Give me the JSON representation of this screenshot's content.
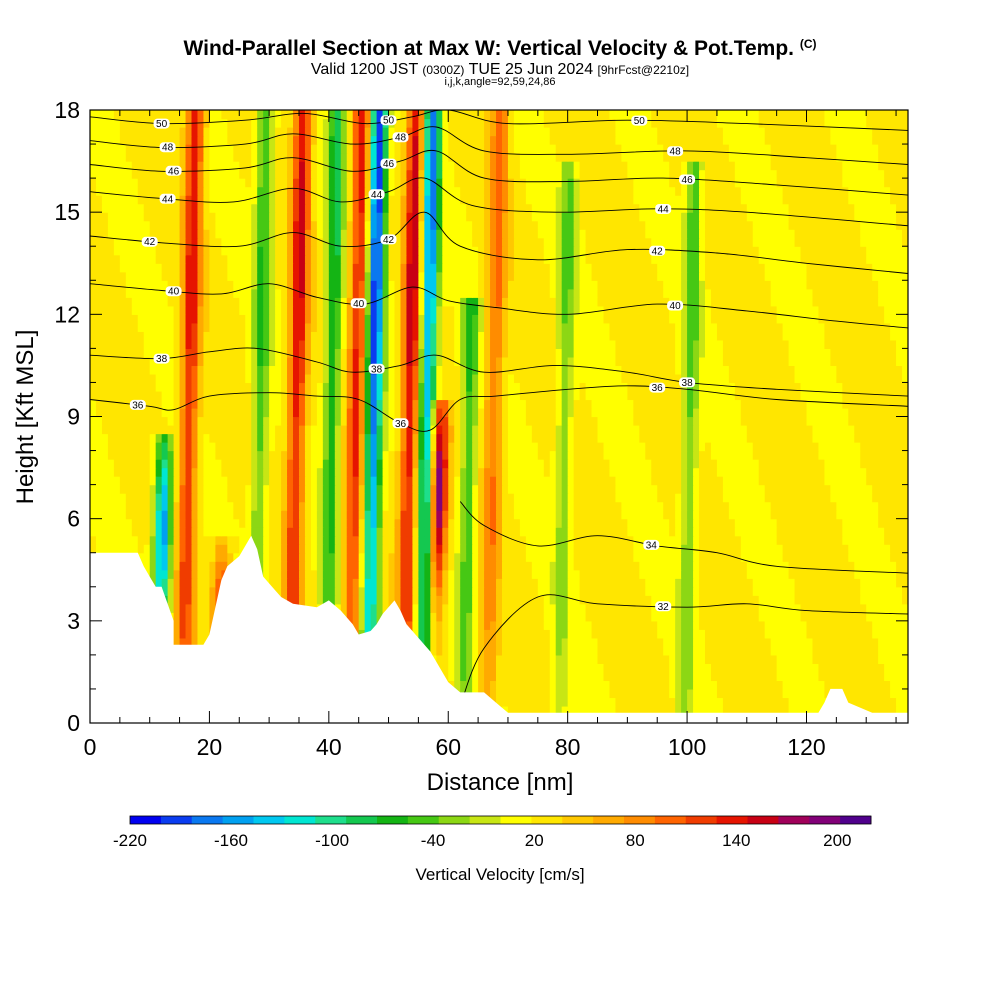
{
  "title": {
    "main": "Wind-Parallel Section at Max W: Vertical Velocity & Pot.Temp.",
    "copyright": "(C)",
    "valid_prefix": "Valid 1200 JST",
    "valid_utc": "(0300Z)",
    "valid_date": "TUE 25 Jun 2024",
    "forecast": "[9hrFcst@2210z]",
    "params": "i,j,k,angle=92,59,24,86"
  },
  "chart_data": {
    "type": "heatmap",
    "xlabel": "Distance [nm]",
    "ylabel": "Height [Kft MSL]",
    "xlim": [
      0,
      137
    ],
    "ylim": [
      0,
      18
    ],
    "x_ticks": [
      "0",
      "20",
      "40",
      "60",
      "80",
      "100",
      "120"
    ],
    "y_ticks": [
      "0",
      "3",
      "6",
      "9",
      "12",
      "15",
      "18"
    ],
    "colorbar": {
      "label": "Vertical Velocity [cm/s]",
      "tick_labels": [
        "-220",
        "-160",
        "-100",
        "-40",
        "20",
        "80",
        "140",
        "200"
      ],
      "range": [
        -220,
        220
      ],
      "colors": [
        "#0000f0",
        "#0a3cf0",
        "#0a78f0",
        "#00a0f0",
        "#00c8f0",
        "#00e6d2",
        "#1ede8c",
        "#14c850",
        "#14b414",
        "#46c814",
        "#8cd714",
        "#c8e614",
        "#ffff00",
        "#ffe600",
        "#ffc800",
        "#ffaa00",
        "#ff8c00",
        "#ff6400",
        "#f03c00",
        "#e61400",
        "#c80014",
        "#a0005a",
        "#820078",
        "#50008c"
      ]
    },
    "updrafts": [
      {
        "x": 16,
        "z_top": 18,
        "w_max": 140
      },
      {
        "x": 22,
        "z_top": 5,
        "w_max": 120
      },
      {
        "x": 34,
        "z_top": 18,
        "w_max": 150
      },
      {
        "x": 44,
        "z_top": 18,
        "w_max": 140
      },
      {
        "x": 53,
        "z_top": 18,
        "w_max": 160
      },
      {
        "x": 58,
        "z_top": 9,
        "w_max": 210
      },
      {
        "x": 67,
        "z_top": 18,
        "w_max": 100
      }
    ],
    "downdrafts": [
      {
        "x": 12,
        "z_top": 8,
        "w_min": -170
      },
      {
        "x": 28,
        "z_top": 18,
        "w_min": -60
      },
      {
        "x": 40,
        "z_top": 18,
        "w_min": -80
      },
      {
        "x": 47,
        "z_top": 18,
        "w_min": -210
      },
      {
        "x": 56,
        "z_top": 18,
        "w_min": -180
      },
      {
        "x": 63,
        "z_top": 12,
        "w_min": -70
      },
      {
        "x": 79,
        "z_top": 16,
        "w_min": -40
      },
      {
        "x": 100,
        "z_top": 16,
        "w_min": -50
      }
    ],
    "theta_contours": [
      {
        "value": 32,
        "label": "32",
        "points": [
          [
            62,
            0.5
          ],
          [
            66,
            2.2
          ],
          [
            75,
            3.7
          ],
          [
            85,
            3.5
          ],
          [
            100,
            3.4
          ],
          [
            110,
            3.5
          ],
          [
            120,
            3.3
          ],
          [
            137,
            3.2
          ]
        ]
      },
      {
        "value": 34,
        "label": "34",
        "points": [
          [
            62,
            6.5
          ],
          [
            66,
            5.8
          ],
          [
            75,
            5.2
          ],
          [
            85,
            5.5
          ],
          [
            95,
            5.2
          ],
          [
            105,
            5.0
          ],
          [
            115,
            4.6
          ],
          [
            137,
            4.4
          ]
        ]
      },
      {
        "value": 36,
        "label": "36",
        "points": [
          [
            0,
            9.5
          ],
          [
            10,
            9.3
          ],
          [
            14,
            9.2
          ],
          [
            20,
            9.6
          ],
          [
            30,
            9.7
          ],
          [
            38,
            9.6
          ],
          [
            45,
            9.5
          ],
          [
            52,
            8.8
          ],
          [
            57,
            8.6
          ],
          [
            62,
            9.5
          ],
          [
            68,
            9.6
          ],
          [
            80,
            9.8
          ],
          [
            90,
            9.9
          ],
          [
            100,
            9.8
          ],
          [
            115,
            9.5
          ],
          [
            137,
            9.3
          ]
        ]
      },
      {
        "value": 38,
        "label": "38",
        "points": [
          [
            0,
            10.8
          ],
          [
            12,
            10.7
          ],
          [
            20,
            10.9
          ],
          [
            28,
            11.0
          ],
          [
            38,
            10.6
          ],
          [
            44,
            10.3
          ],
          [
            52,
            10.5
          ],
          [
            58,
            10.8
          ],
          [
            66,
            10.3
          ],
          [
            78,
            10.5
          ],
          [
            90,
            10.3
          ],
          [
            100,
            10.0
          ],
          [
            115,
            9.8
          ],
          [
            137,
            9.6
          ]
        ]
      },
      {
        "value": 40,
        "label": "40",
        "points": [
          [
            0,
            12.9
          ],
          [
            12,
            12.7
          ],
          [
            22,
            12.6
          ],
          [
            30,
            12.9
          ],
          [
            38,
            12.5
          ],
          [
            46,
            12.3
          ],
          [
            54,
            12.8
          ],
          [
            60,
            12.4
          ],
          [
            68,
            12.2
          ],
          [
            80,
            12.0
          ],
          [
            95,
            12.3
          ],
          [
            110,
            12.1
          ],
          [
            125,
            11.8
          ],
          [
            137,
            11.6
          ]
        ]
      },
      {
        "value": 42,
        "label": "42",
        "points": [
          [
            0,
            14.3
          ],
          [
            12,
            14.1
          ],
          [
            25,
            14.0
          ],
          [
            34,
            14.4
          ],
          [
            42,
            14.0
          ],
          [
            50,
            14.2
          ],
          [
            56,
            15.0
          ],
          [
            62,
            14.0
          ],
          [
            75,
            13.6
          ],
          [
            90,
            13.9
          ],
          [
            105,
            13.8
          ],
          [
            120,
            13.5
          ],
          [
            137,
            13.2
          ]
        ]
      },
      {
        "value": 44,
        "label": "44",
        "points": [
          [
            0,
            15.6
          ],
          [
            12,
            15.4
          ],
          [
            24,
            15.3
          ],
          [
            34,
            15.7
          ],
          [
            42,
            15.3
          ],
          [
            50,
            15.6
          ],
          [
            56,
            16.0
          ],
          [
            64,
            15.2
          ],
          [
            78,
            15.0
          ],
          [
            95,
            15.1
          ],
          [
            110,
            15.0
          ],
          [
            137,
            14.6
          ]
        ]
      },
      {
        "value": 46,
        "label": "46",
        "points": [
          [
            0,
            16.4
          ],
          [
            12,
            16.2
          ],
          [
            26,
            16.3
          ],
          [
            34,
            16.6
          ],
          [
            44,
            16.2
          ],
          [
            52,
            16.5
          ],
          [
            58,
            16.8
          ],
          [
            66,
            16.0
          ],
          [
            80,
            15.9
          ],
          [
            96,
            16.0
          ],
          [
            115,
            15.8
          ],
          [
            137,
            15.5
          ]
        ]
      },
      {
        "value": 48,
        "label": "48",
        "points": [
          [
            0,
            17.1
          ],
          [
            12,
            16.9
          ],
          [
            26,
            17.0
          ],
          [
            34,
            17.3
          ],
          [
            44,
            17.0
          ],
          [
            52,
            17.2
          ],
          [
            58,
            17.5
          ],
          [
            66,
            16.8
          ],
          [
            80,
            16.7
          ],
          [
            100,
            16.8
          ],
          [
            120,
            16.6
          ],
          [
            137,
            16.4
          ]
        ]
      },
      {
        "value": 50,
        "label": "50",
        "points": [
          [
            0,
            17.8
          ],
          [
            12,
            17.6
          ],
          [
            26,
            17.7
          ],
          [
            36,
            17.9
          ],
          [
            46,
            17.6
          ],
          [
            54,
            17.8
          ],
          [
            60,
            18.0
          ],
          [
            70,
            17.6
          ],
          [
            90,
            17.7
          ],
          [
            110,
            17.6
          ],
          [
            137,
            17.4
          ]
        ]
      }
    ],
    "terrain": [
      [
        0,
        5.0
      ],
      [
        8,
        5.0
      ],
      [
        9,
        4.6
      ],
      [
        10,
        4.3
      ],
      [
        11,
        4.0
      ],
      [
        12,
        4.0
      ],
      [
        13,
        3.5
      ],
      [
        14,
        3.0
      ],
      [
        14,
        2.3
      ],
      [
        19,
        2.3
      ],
      [
        20,
        2.6
      ],
      [
        21,
        3.4
      ],
      [
        22,
        4.2
      ],
      [
        23,
        4.6
      ],
      [
        25,
        4.9
      ],
      [
        27,
        5.5
      ],
      [
        28,
        5.1
      ],
      [
        29,
        4.3
      ],
      [
        31,
        3.9
      ],
      [
        32,
        3.7
      ],
      [
        34,
        3.5
      ],
      [
        38,
        3.4
      ],
      [
        40,
        3.6
      ],
      [
        42,
        3.3
      ],
      [
        44,
        2.9
      ],
      [
        45,
        2.6
      ],
      [
        47,
        2.7
      ],
      [
        48,
        2.9
      ],
      [
        49,
        3.2
      ],
      [
        51,
        3.6
      ],
      [
        52,
        3.3
      ],
      [
        53,
        2.9
      ],
      [
        55,
        2.5
      ],
      [
        57,
        2.1
      ],
      [
        58,
        1.8
      ],
      [
        60,
        1.2
      ],
      [
        62,
        0.9
      ],
      [
        66,
        0.9
      ],
      [
        68,
        0.6
      ],
      [
        70,
        0.3
      ],
      [
        122,
        0.3
      ],
      [
        123,
        0.6
      ],
      [
        124,
        1.0
      ],
      [
        126,
        1.0
      ],
      [
        127,
        0.6
      ],
      [
        131,
        0.3
      ],
      [
        137,
        0.3
      ]
    ]
  }
}
